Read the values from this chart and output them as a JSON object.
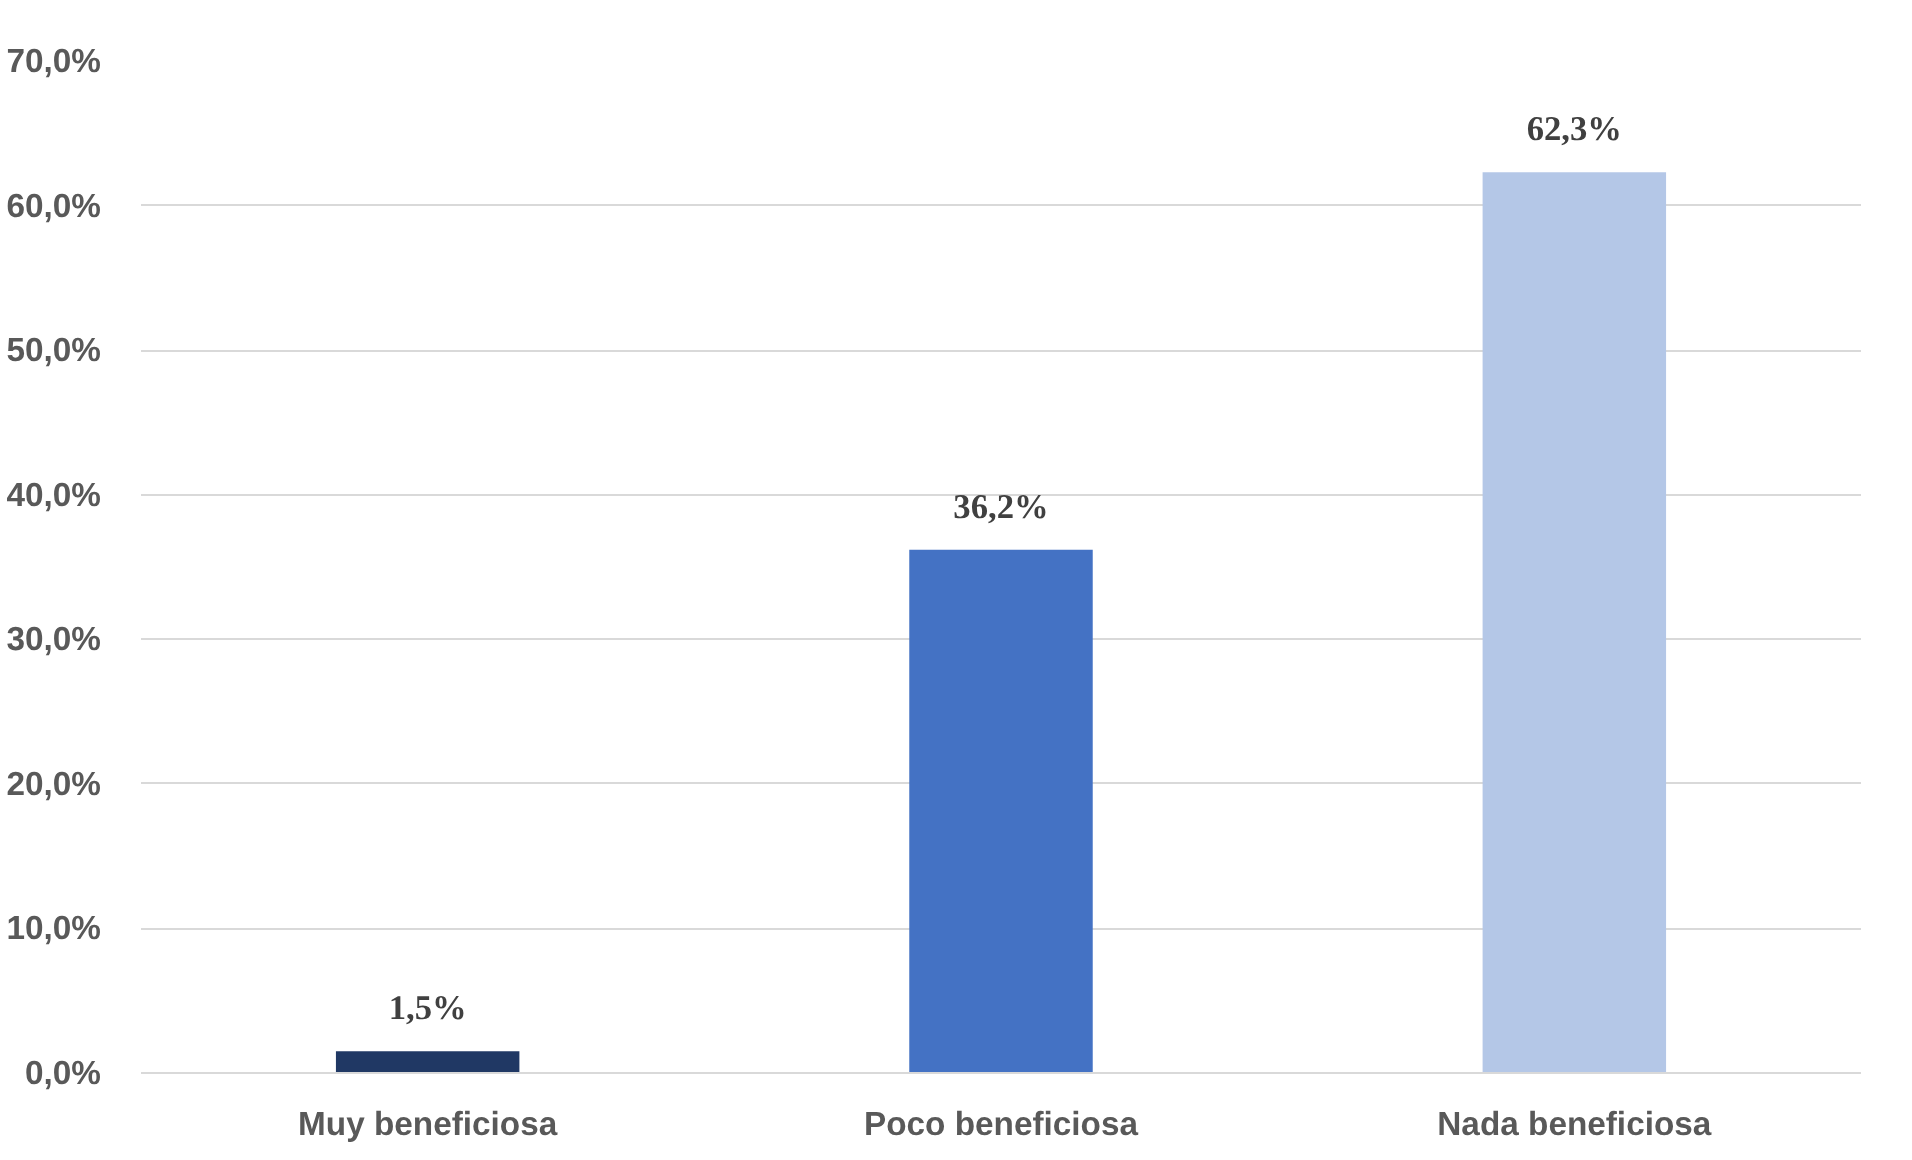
{
  "chart_data": {
    "type": "bar",
    "categories": [
      "Muy beneficiosa",
      "Poco beneficiosa",
      "Nada beneficiosa"
    ],
    "values": [
      1.5,
      36.2,
      62.3
    ],
    "colors": [
      "#203864",
      "#4472c4",
      "#b4c7e7"
    ],
    "value_labels": [
      "1,5%",
      "36,2%",
      "62,3%"
    ],
    "ylim": [
      0,
      70
    ],
    "yticks": [
      {
        "value": 0,
        "label": "0,0%"
      },
      {
        "value": 10,
        "label": "10,0%"
      },
      {
        "value": 20,
        "label": "20,0%"
      },
      {
        "value": 30,
        "label": "30,0%"
      },
      {
        "value": 40,
        "label": "40,0%"
      },
      {
        "value": 50,
        "label": "50,0%"
      },
      {
        "value": 60,
        "label": "60,0%"
      },
      {
        "value": 70,
        "label": "70,0%"
      }
    ],
    "grid": "y"
  }
}
